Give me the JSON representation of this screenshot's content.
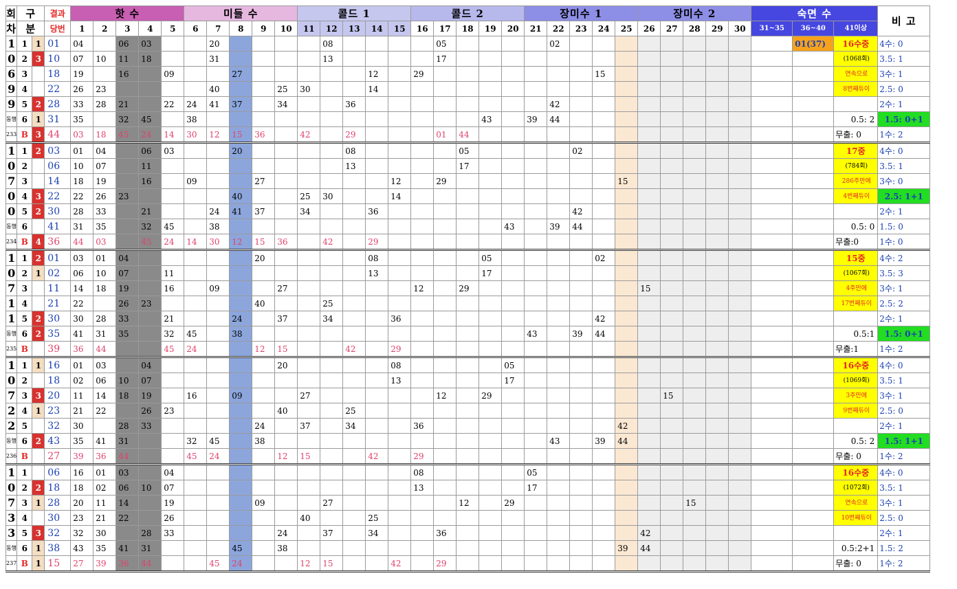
{
  "headers": {
    "round": [
      "회",
      "차"
    ],
    "div": [
      "구",
      "분"
    ],
    "result": [
      "결과",
      "당번"
    ],
    "groups": [
      {
        "label": "핫 수",
        "span": 5,
        "color": "#c85fb2"
      },
      {
        "label": "미들 수",
        "span": 5,
        "color": "#e6b8e0"
      },
      {
        "label": "콜드 1",
        "span": 5,
        "color": "#c6c7ef"
      },
      {
        "label": "콜드 2",
        "span": 5,
        "color": "#b7b8ec"
      },
      {
        "label": "장미수 1",
        "span": 5,
        "color": "#8d8ee6"
      },
      {
        "label": "장미수 2",
        "span": 5,
        "color": "#8d8ee6"
      },
      {
        "label": "숙면 수",
        "span": 3,
        "color": "#4646e0"
      }
    ],
    "note": "비 고",
    "nums": [
      "1",
      "2",
      "3",
      "4",
      "5",
      "6",
      "7",
      "8",
      "9",
      "10",
      "11",
      "12",
      "13",
      "14",
      "15",
      "16",
      "17",
      "18",
      "19",
      "20",
      "21",
      "22",
      "23",
      "24",
      "25",
      "26",
      "27",
      "28",
      "29",
      "30"
    ],
    "sleep": [
      "31~35",
      "36~40",
      "41이상"
    ]
  },
  "blocks": [
    {
      "id": "1069",
      "sub": "동행",
      "code": "233",
      "rows": [
        {
          "k": "1",
          "k2": "1",
          "draw": "01",
          "cells": {
            "1": "04",
            "3": "06",
            "4": "03",
            "7": "20",
            "12": "08",
            "17": "05",
            "22": "02"
          },
          "sleep": {
            "36~40": "01(37)"
          },
          "note": "16수중",
          "rem": "4수: 0"
        },
        {
          "k": "2",
          "k2": "3",
          "draw": "10",
          "cells": {
            "1": "07",
            "2": "10",
            "3": "11",
            "4": "18",
            "7": "31",
            "12": "13",
            "17": "17"
          },
          "note": "(1068회)",
          "rem": "3.5: 1"
        },
        {
          "k": "3",
          "draw": "18",
          "cells": {
            "1": "19",
            "3": "16",
            "5": "09",
            "8": "27",
            "14": "12",
            "16": "29",
            "24": "15"
          },
          "note": "연속으로",
          "rem": "3수: 1"
        },
        {
          "k": "4",
          "draw": "22",
          "cells": {
            "1": "26",
            "2": "23",
            "7": "40",
            "10": "25",
            "11": "30",
            "14": "14"
          },
          "note": "8번째듀이",
          "rem": "2.5: 0"
        },
        {
          "k": "5",
          "k2": "2",
          "draw": "28",
          "cells": {
            "1": "33",
            "2": "28",
            "3": "21",
            "5": "22",
            "6": "24",
            "7": "41",
            "8": "37",
            "10": "34",
            "13": "36",
            "22": "42"
          },
          "rem": "2수: 1"
        },
        {
          "k": "6",
          "k2": "1",
          "draw": "31",
          "cells": {
            "1": "35",
            "3": "32",
            "4": "45",
            "6": "38",
            "19": "43",
            "21": "39",
            "22": "44"
          },
          "note": "0.5: 2",
          "rem": "1.5: 0+1"
        },
        {
          "k": "B",
          "k2": "3",
          "draw": "44",
          "cells": {
            "1": "03",
            "2": "18",
            "3": "45",
            "4": "24",
            "5": "14",
            "6": "30",
            "7": "12",
            "8": "15",
            "9": "36",
            "11": "42",
            "13": "29",
            "17": "01",
            "18": "44"
          },
          "note": "무출: 0",
          "rem": "1수: 2"
        }
      ]
    },
    {
      "id": "1070",
      "sub": "동행",
      "code": "234",
      "rows": [
        {
          "k": "1",
          "k2": "2",
          "draw": "03",
          "cells": {
            "1": "01",
            "2": "04",
            "4": "06",
            "5": "03",
            "8": "20",
            "13": "08",
            "18": "05",
            "23": "02"
          },
          "note": "17중",
          "rem": "4수: 0"
        },
        {
          "k": "2",
          "draw": "06",
          "cells": {
            "1": "10",
            "2": "07",
            "4": "11",
            "13": "13",
            "18": "17"
          },
          "note": "(784회)",
          "rem": "3.5: 1"
        },
        {
          "k": "3",
          "draw": "14",
          "cells": {
            "1": "18",
            "2": "19",
            "4": "16",
            "6": "09",
            "9": "27",
            "15": "12",
            "17": "29",
            "25": "15"
          },
          "note": "286주만에",
          "rem": "3수: 0"
        },
        {
          "k": "4",
          "k2": "3",
          "draw": "22",
          "cells": {
            "1": "22",
            "2": "26",
            "3": "23",
            "8": "40",
            "11": "25",
            "12": "30",
            "15": "14"
          },
          "note": "4번째듀이",
          "rem": "2.5: 1+1"
        },
        {
          "k": "5",
          "k2": "2",
          "draw": "30",
          "cells": {
            "1": "28",
            "2": "33",
            "4": "21",
            "7": "24",
            "8": "41",
            "9": "37",
            "11": "34",
            "14": "36",
            "23": "42"
          },
          "rem": "2수: 1"
        },
        {
          "k": "6",
          "draw": "41",
          "cells": {
            "1": "31",
            "2": "35",
            "4": "32",
            "5": "45",
            "7": "38",
            "20": "43",
            "22": "39",
            "23": "44"
          },
          "note": "0.5: 0",
          "rem": "1.5: 0"
        },
        {
          "k": "B",
          "k2": "4",
          "draw": "36",
          "cells": {
            "1": "44",
            "2": "03",
            "4": "45",
            "5": "24",
            "6": "14",
            "7": "30",
            "8": "12",
            "9": "15",
            "10": "36",
            "12": "42",
            "14": "29"
          },
          "note": "무출:0",
          "rem": "1수: 0"
        }
      ]
    },
    {
      "id": "1071",
      "sub": "동행",
      "code": "235",
      "rows": [
        {
          "k": "1",
          "k2": "2",
          "draw": "01",
          "cells": {
            "1": "03",
            "2": "01",
            "3": "04",
            "9": "20",
            "14": "08",
            "19": "05",
            "24": "02"
          },
          "note": "15중",
          "rem": "4수: 2"
        },
        {
          "k": "2",
          "k2": "1",
          "draw": "02",
          "cells": {
            "1": "06",
            "2": "10",
            "3": "07",
            "5": "11",
            "14": "13",
            "19": "17"
          },
          "note": "(1067회)",
          "rem": "3.5: 3"
        },
        {
          "k": "3",
          "draw": "11",
          "cells": {
            "1": "14",
            "2": "18",
            "3": "19",
            "5": "16",
            "7": "09",
            "10": "27",
            "16": "12",
            "18": "29",
            "26": "15"
          },
          "note": "4주만에",
          "rem": "3수: 1"
        },
        {
          "k": "4",
          "draw": "21",
          "cells": {
            "1": "22",
            "3": "26",
            "4": "23",
            "9": "40",
            "12": "25"
          },
          "note": "17번째듀이",
          "rem": "2.5: 2"
        },
        {
          "k": "5",
          "k2": "2",
          "draw": "30",
          "cells": {
            "1": "30",
            "2": "28",
            "3": "33",
            "5": "21",
            "8": "24",
            "10": "37",
            "12": "34",
            "15": "36",
            "24": "42"
          },
          "rem": "2수: 1"
        },
        {
          "k": "6",
          "k2": "2",
          "draw": "35",
          "cells": {
            "1": "41",
            "2": "31",
            "3": "35",
            "5": "32",
            "6": "45",
            "8": "38",
            "21": "43",
            "23": "39",
            "24": "44"
          },
          "note": "0.5:1",
          "rem": "1.5: 0+1"
        },
        {
          "k": "B",
          "draw": "39",
          "cells": {
            "1": "36",
            "2": "44",
            "5": "45",
            "6": "24",
            "9": "12",
            "10": "15",
            "13": "42",
            "15": "29"
          },
          "note": "무출:1",
          "rem": "1수: 2"
        }
      ]
    },
    {
      "id": "1072",
      "sub": "동행",
      "code": "236",
      "rows": [
        {
          "k": "1",
          "k2": "1",
          "draw": "16",
          "cells": {
            "1": "01",
            "2": "03",
            "4": "04",
            "10": "20",
            "15": "08",
            "20": "05"
          },
          "note": "16수중",
          "rem": "4수: 0"
        },
        {
          "k": "2",
          "draw": "18",
          "cells": {
            "1": "02",
            "2": "06",
            "3": "10",
            "4": "07",
            "15": "13",
            "20": "17"
          },
          "note": "(1069회)",
          "rem": "3.5: 1"
        },
        {
          "k": "3",
          "k2": "3",
          "draw": "20",
          "cells": {
            "1": "11",
            "2": "14",
            "3": "18",
            "4": "19",
            "6": "16",
            "8": "09",
            "11": "27",
            "17": "12",
            "19": "29",
            "27": "15"
          },
          "note": "3주만에",
          "rem": "3수: 1"
        },
        {
          "k": "4",
          "k2": "1",
          "draw": "23",
          "cells": {
            "1": "21",
            "2": "22",
            "4": "26",
            "5": "23",
            "10": "40",
            "13": "25"
          },
          "note": "9번째듀이",
          "rem": "2.5: 0"
        },
        {
          "k": "5",
          "draw": "32",
          "cells": {
            "1": "30",
            "3": "28",
            "4": "33",
            "9": "24",
            "11": "37",
            "13": "34",
            "16": "36",
            "25": "42"
          },
          "rem": "2수: 1"
        },
        {
          "k": "6",
          "k2": "2",
          "draw": "43",
          "cells": {
            "1": "35",
            "2": "41",
            "3": "31",
            "6": "32",
            "7": "45",
            "9": "38",
            "22": "43",
            "24": "39",
            "25": "44"
          },
          "note": "0.5: 2",
          "rem": "1.5: 1+1"
        },
        {
          "k": "B",
          "draw": "27",
          "cells": {
            "1": "39",
            "2": "36",
            "3": "44",
            "6": "45",
            "7": "24",
            "10": "12",
            "11": "15",
            "14": "42",
            "16": "29"
          },
          "note": "무출: 0",
          "rem": "1수: 2"
        }
      ]
    },
    {
      "id": "1073",
      "sub": "동행",
      "code": "237",
      "rows": [
        {
          "k": "1",
          "draw": "06",
          "cells": {
            "1": "16",
            "2": "01",
            "3": "03",
            "5": "04",
            "16": "08",
            "21": "05"
          },
          "note": "16수중",
          "rem": "4수: 0"
        },
        {
          "k": "2",
          "k2": "2",
          "draw": "18",
          "cells": {
            "1": "18",
            "2": "02",
            "3": "06",
            "4": "10",
            "5": "07",
            "16": "13",
            "21": "17"
          },
          "note": "(1072회)",
          "rem": "3.5: 1"
        },
        {
          "k": "3",
          "k2": "1",
          "draw": "28",
          "cells": {
            "1": "20",
            "2": "11",
            "3": "14",
            "5": "19",
            "9": "09",
            "12": "27",
            "18": "12",
            "20": "29",
            "28": "15"
          },
          "note": "연속으로",
          "rem": "3수: 1"
        },
        {
          "k": "4",
          "draw": "30",
          "cells": {
            "1": "23",
            "2": "21",
            "3": "22",
            "5": "26",
            "11": "40",
            "14": "25"
          },
          "note": "10번째듀이",
          "rem": "2.5: 0"
        },
        {
          "k": "5",
          "k2": "3",
          "draw": "32",
          "cells": {
            "1": "32",
            "2": "30",
            "4": "28",
            "5": "33",
            "10": "24",
            "12": "37",
            "14": "34",
            "17": "36",
            "26": "42"
          },
          "rem": "2수: 1"
        },
        {
          "k": "6",
          "k2": "1",
          "draw": "38",
          "cells": {
            "1": "43",
            "2": "35",
            "3": "41",
            "4": "31",
            "8": "45",
            "10": "38",
            "25": "39",
            "26": "44"
          },
          "note": "0.5:2+1",
          "rem": "1.5: 2"
        },
        {
          "k": "B",
          "k2": "1",
          "draw": "15",
          "cells": {
            "1": "27",
            "2": "39",
            "3": "36",
            "4": "44",
            "7": "45",
            "8": "24",
            "11": "12",
            "12": "15",
            "15": "42",
            "17": "29"
          },
          "note": "무출: 0",
          "rem": "1수: 2"
        }
      ]
    }
  ]
}
